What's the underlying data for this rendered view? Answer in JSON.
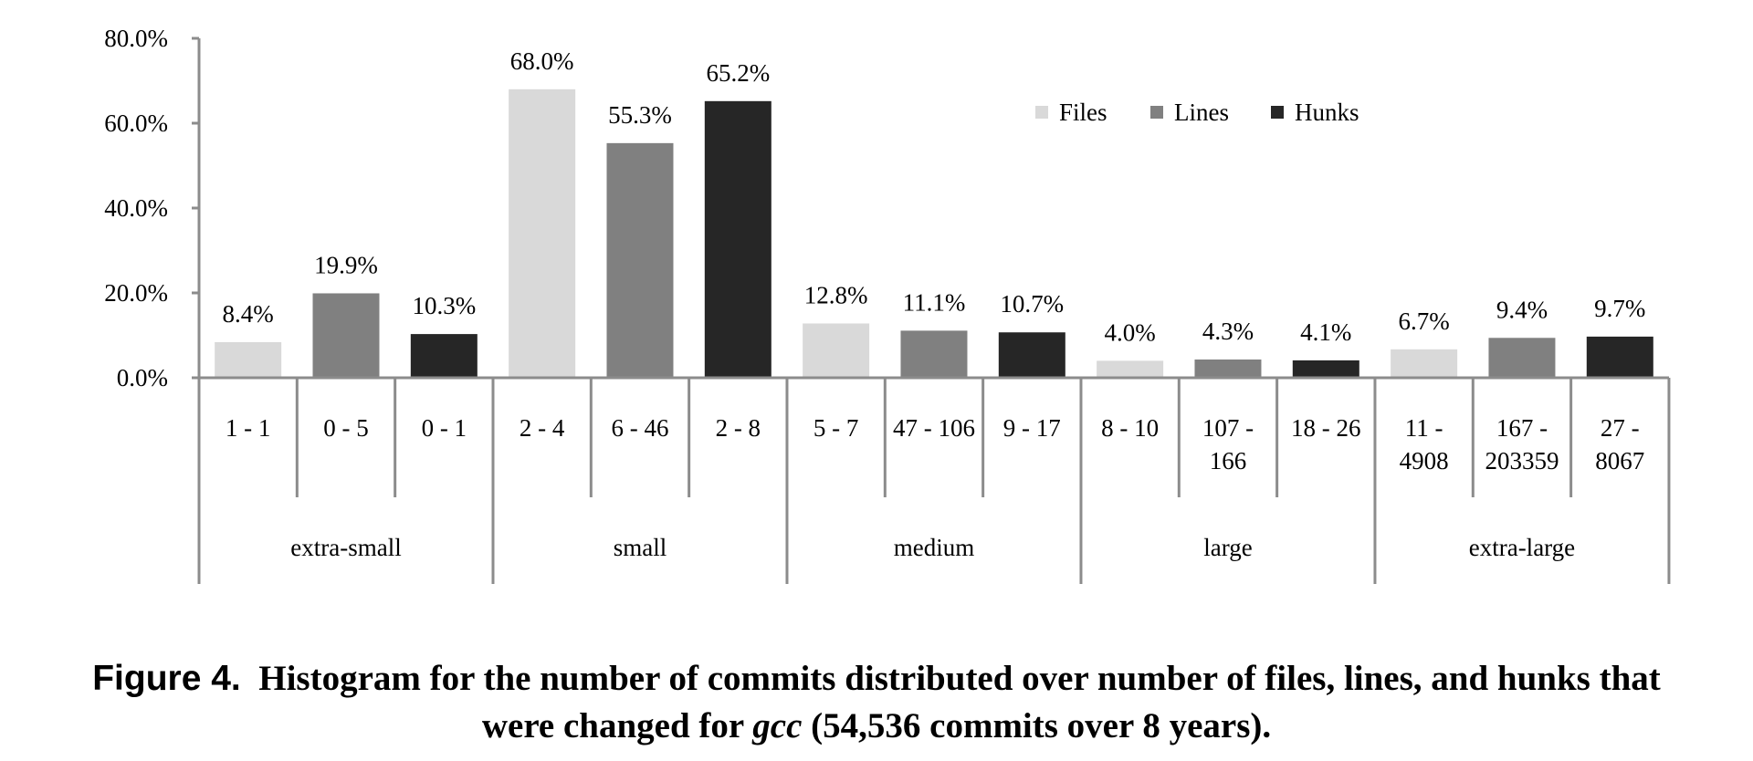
{
  "chart_data": {
    "type": "bar",
    "groups": [
      "extra-small",
      "small",
      "medium",
      "large",
      "extra-large"
    ],
    "series": [
      {
        "name": "Files",
        "color": "#d9d9d9",
        "values": [
          8.4,
          68.0,
          12.8,
          4.0,
          6.7
        ],
        "labels": [
          "8.4%",
          "68.0%",
          "12.8%",
          "4.0%",
          "6.7%"
        ],
        "ranges": [
          [
            "1 - 1"
          ],
          [
            "2 - 4"
          ],
          [
            "5 - 7"
          ],
          [
            "8 - 10"
          ],
          [
            "11 -",
            "4908"
          ]
        ]
      },
      {
        "name": "Lines",
        "color": "#808080",
        "values": [
          19.9,
          55.3,
          11.1,
          4.3,
          9.4
        ],
        "labels": [
          "19.9%",
          "55.3%",
          "11.1%",
          "4.3%",
          "9.4%"
        ],
        "ranges": [
          [
            "0 - 5"
          ],
          [
            "6 - 46"
          ],
          [
            "47 - 106"
          ],
          [
            "107 -",
            "166"
          ],
          [
            "167 -",
            "203359"
          ]
        ]
      },
      {
        "name": "Hunks",
        "color": "#262626",
        "values": [
          10.3,
          65.2,
          10.7,
          4.1,
          9.7
        ],
        "labels": [
          "10.3%",
          "65.2%",
          "10.7%",
          "4.1%",
          "9.7%"
        ],
        "ranges": [
          [
            "0 - 1"
          ],
          [
            "2 - 8"
          ],
          [
            "9 - 17"
          ],
          [
            "18 - 26"
          ],
          [
            "27 -",
            "8067"
          ]
        ]
      }
    ],
    "ylim": [
      0,
      80
    ],
    "yticks": [
      "0.0%",
      "20.0%",
      "40.0%",
      "60.0%",
      "80.0%"
    ],
    "legend_position": "top-right",
    "grid": false
  },
  "caption": {
    "figure_label": "Figure 4.",
    "text_part1": "Histogram for the number of commits distributed over number of files, lines, and hunks that",
    "text_part2": "were changed for",
    "text_italic": "gcc",
    "text_part3": "(54,536 commits over 8 years)."
  }
}
